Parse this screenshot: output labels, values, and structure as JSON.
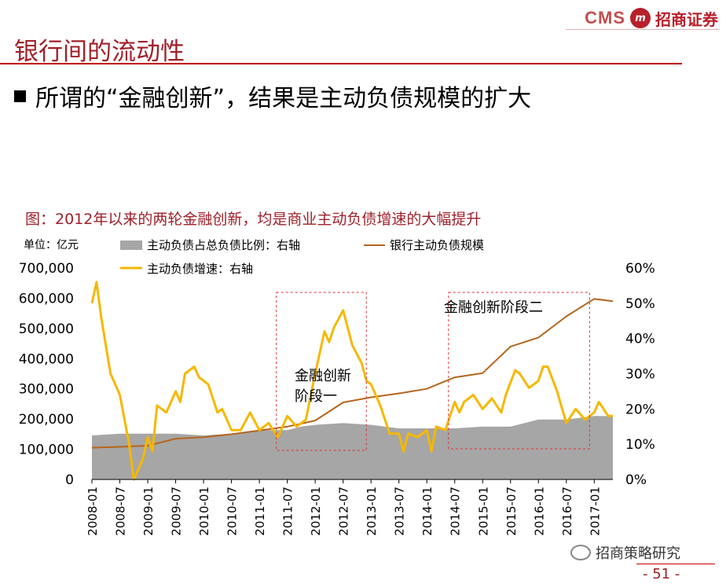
{
  "brand": {
    "cms": "CMS",
    "logo_text": "m",
    "name": "招商证券"
  },
  "slide": {
    "title": "银行间的流动性",
    "subtitle": "所谓的“金融创新”，结果是主动负债规模的扩大",
    "figure_caption": "图：2012年以来的两轮金融创新，均是商业主动负债增速的大幅提升",
    "watermark": "招商策略研究",
    "page_number": "- 51 -"
  },
  "colors": {
    "area": "#a6a6a6",
    "scale_line": "#b5651d",
    "growth_line": "#f5b800",
    "box": "#e03030",
    "accent": "#a0202a"
  },
  "chart_data": {
    "type": "line",
    "unit_label": "单位：亿元",
    "x_ticks": [
      "2008-01",
      "2008-07",
      "2009-01",
      "2009-07",
      "2010-01",
      "2010-07",
      "2011-01",
      "2011-07",
      "2012-01",
      "2012-07",
      "2013-01",
      "2013-07",
      "2014-01",
      "2014-07",
      "2015-01",
      "2015-07",
      "2016-01",
      "2016-07",
      "2017-01"
    ],
    "x_range": [
      "2008-01",
      "2017-05"
    ],
    "y_left": {
      "ticks": [
        "0",
        "100,000",
        "200,000",
        "300,000",
        "400,000",
        "500,000",
        "600,000",
        "700,000"
      ],
      "range": [
        0,
        700000
      ]
    },
    "y_right": {
      "ticks": [
        "0%",
        "10%",
        "20%",
        "30%",
        "40%",
        "50%",
        "60%"
      ],
      "range": [
        0,
        0.6
      ]
    },
    "legend": [
      {
        "key": "area",
        "label": "主动负债占总负债比例：右轴"
      },
      {
        "key": "scale",
        "label": "银行主动负债规模"
      },
      {
        "key": "growth",
        "label": "主动负债增速：右轴"
      }
    ],
    "annotations": [
      {
        "text": "金融创新阶段一",
        "line1": "金融创新",
        "line2": "阶段一",
        "from": "2011-06",
        "to": "2012-12"
      },
      {
        "text": "金融创新阶段二",
        "from": "2014-06",
        "to": "2016-12"
      }
    ],
    "series": [
      {
        "name": "主动负债占总负债比例：右轴",
        "axis": "right",
        "kind": "area",
        "points": [
          [
            "2008-01",
            0.125
          ],
          [
            "2008-07",
            0.13
          ],
          [
            "2009-01",
            0.13
          ],
          [
            "2009-07",
            0.13
          ],
          [
            "2010-01",
            0.125
          ],
          [
            "2010-07",
            0.13
          ],
          [
            "2011-01",
            0.14
          ],
          [
            "2011-07",
            0.14
          ],
          [
            "2011-10",
            0.15
          ],
          [
            "2012-01",
            0.155
          ],
          [
            "2012-07",
            0.16
          ],
          [
            "2013-01",
            0.155
          ],
          [
            "2013-07",
            0.145
          ],
          [
            "2014-01",
            0.145
          ],
          [
            "2014-07",
            0.145
          ],
          [
            "2015-01",
            0.15
          ],
          [
            "2015-07",
            0.15
          ],
          [
            "2016-01",
            0.17
          ],
          [
            "2016-07",
            0.17
          ],
          [
            "2017-01",
            0.18
          ],
          [
            "2017-05",
            0.18
          ]
        ]
      },
      {
        "name": "银行主动负债规模",
        "axis": "left",
        "kind": "line",
        "points": [
          [
            "2008-01",
            105000
          ],
          [
            "2008-07",
            108000
          ],
          [
            "2009-01",
            112000
          ],
          [
            "2009-07",
            135000
          ],
          [
            "2010-01",
            140000
          ],
          [
            "2010-07",
            150000
          ],
          [
            "2011-01",
            162000
          ],
          [
            "2011-07",
            175000
          ],
          [
            "2012-01",
            195000
          ],
          [
            "2012-07",
            255000
          ],
          [
            "2013-01",
            272000
          ],
          [
            "2013-07",
            285000
          ],
          [
            "2014-01",
            300000
          ],
          [
            "2014-07",
            338000
          ],
          [
            "2015-01",
            352000
          ],
          [
            "2015-07",
            440000
          ],
          [
            "2016-01",
            470000
          ],
          [
            "2016-07",
            540000
          ],
          [
            "2017-01",
            598000
          ],
          [
            "2017-05",
            590000
          ]
        ]
      },
      {
        "name": "主动负债增速：右轴",
        "axis": "right",
        "kind": "line",
        "points": [
          [
            "2008-01",
            0.5
          ],
          [
            "2008-02",
            0.56
          ],
          [
            "2008-03",
            0.46
          ],
          [
            "2008-05",
            0.3
          ],
          [
            "2008-07",
            0.24
          ],
          [
            "2008-09",
            0.1
          ],
          [
            "2008-10",
            0.0
          ],
          [
            "2008-12",
            0.06
          ],
          [
            "2009-01",
            0.12
          ],
          [
            "2009-02",
            0.08
          ],
          [
            "2009-03",
            0.21
          ],
          [
            "2009-05",
            0.19
          ],
          [
            "2009-07",
            0.25
          ],
          [
            "2009-08",
            0.22
          ],
          [
            "2009-09",
            0.3
          ],
          [
            "2009-11",
            0.32
          ],
          [
            "2009-12",
            0.29
          ],
          [
            "2010-02",
            0.27
          ],
          [
            "2010-04",
            0.19
          ],
          [
            "2010-05",
            0.2
          ],
          [
            "2010-07",
            0.14
          ],
          [
            "2010-09",
            0.14
          ],
          [
            "2010-11",
            0.19
          ],
          [
            "2011-01",
            0.14
          ],
          [
            "2011-03",
            0.16
          ],
          [
            "2011-05",
            0.12
          ],
          [
            "2011-07",
            0.18
          ],
          [
            "2011-09",
            0.15
          ],
          [
            "2011-11",
            0.17
          ],
          [
            "2012-01",
            0.3
          ],
          [
            "2012-03",
            0.42
          ],
          [
            "2012-04",
            0.39
          ],
          [
            "2012-05",
            0.43
          ],
          [
            "2012-07",
            0.48
          ],
          [
            "2012-09",
            0.38
          ],
          [
            "2012-11",
            0.33
          ],
          [
            "2012-12",
            0.28
          ],
          [
            "2013-01",
            0.27
          ],
          [
            "2013-03",
            0.21
          ],
          [
            "2013-05",
            0.13
          ],
          [
            "2013-07",
            0.13
          ],
          [
            "2013-08",
            0.08
          ],
          [
            "2013-09",
            0.13
          ],
          [
            "2013-11",
            0.12
          ],
          [
            "2014-01",
            0.14
          ],
          [
            "2014-02",
            0.08
          ],
          [
            "2014-03",
            0.15
          ],
          [
            "2014-05",
            0.14
          ],
          [
            "2014-07",
            0.22
          ],
          [
            "2014-08",
            0.19
          ],
          [
            "2014-09",
            0.22
          ],
          [
            "2014-11",
            0.24
          ],
          [
            "2015-01",
            0.2
          ],
          [
            "2015-03",
            0.23
          ],
          [
            "2015-05",
            0.19
          ],
          [
            "2015-06",
            0.24
          ],
          [
            "2015-08",
            0.31
          ],
          [
            "2015-09",
            0.3
          ],
          [
            "2015-11",
            0.26
          ],
          [
            "2016-01",
            0.28
          ],
          [
            "2016-02",
            0.32
          ],
          [
            "2016-03",
            0.32
          ],
          [
            "2016-05",
            0.25
          ],
          [
            "2016-07",
            0.16
          ],
          [
            "2016-09",
            0.2
          ],
          [
            "2016-11",
            0.17
          ],
          [
            "2017-01",
            0.19
          ],
          [
            "2017-02",
            0.22
          ],
          [
            "2017-04",
            0.18
          ],
          [
            "2017-05",
            0.18
          ]
        ]
      }
    ]
  }
}
